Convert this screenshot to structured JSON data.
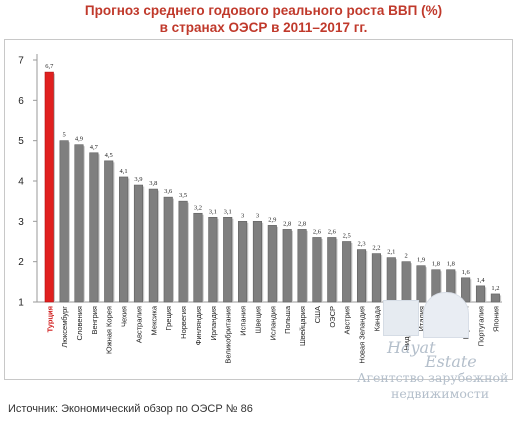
{
  "title": {
    "line1": "Прогноз среднего годового реального роста ВВП (%)",
    "line2": "в странах ОЭСР в 2011–2017 гг."
  },
  "source": "Источник: Экономический обзор по ОЭСР № 86",
  "watermark": {
    "brand_top": "Hayat",
    "brand_bottom": "Estate",
    "line1": "Агентство зарубежной",
    "line2": "недвижимости"
  },
  "colors": {
    "bar": "#7f7f7f",
    "bar_highlight": "#e0201f",
    "highlight_label": "#d11f1f",
    "title": "#c0392b"
  },
  "chart_data": {
    "type": "bar",
    "ylim": [
      1,
      7
    ],
    "yticks": [
      1,
      2,
      3,
      4,
      5,
      6,
      7
    ],
    "highlight_index": 0,
    "categories": [
      "Турция",
      "Люксембург",
      "Словения",
      "Венгрия",
      "Южная Корея",
      "Чехия",
      "Австралия",
      "Мексика",
      "Греция",
      "Норвегия",
      "Финляндия",
      "Ирландия",
      "Великобритания",
      "Испания",
      "Швеция",
      "Исландия",
      "Польша",
      "Швейцария",
      "США",
      "ОЭСР",
      "Австрия",
      "Новая Зеландия",
      "Канада",
      "Дания",
      "Нидерланды",
      "Италия",
      "Бельгия",
      "Франция",
      "Германия",
      "Португалия",
      "Япония"
    ],
    "values": [
      6.7,
      5,
      4.9,
      4.7,
      4.5,
      4.1,
      3.9,
      3.8,
      3.6,
      3.5,
      3.2,
      3.1,
      3.1,
      3,
      3,
      2.9,
      2.8,
      2.8,
      2.6,
      2.6,
      2.5,
      2.3,
      2.2,
      2.1,
      2,
      1.9,
      1.8,
      1.8,
      1.6,
      1.4,
      1.2
    ],
    "value_labels": [
      "6,7",
      "5",
      "4,9",
      "4,7",
      "4,5",
      "4,1",
      "3,9",
      "3,8",
      "3,6",
      "3,5",
      "3,2",
      "3,1",
      "3,1",
      "3",
      "3",
      "2,9",
      "2,8",
      "2,8",
      "2,6",
      "2,6",
      "2,5",
      "2,3",
      "2,2",
      "2,1",
      "2",
      "1,9",
      "1,8",
      "1,8",
      "1,6",
      "1,4",
      "1,2"
    ]
  }
}
